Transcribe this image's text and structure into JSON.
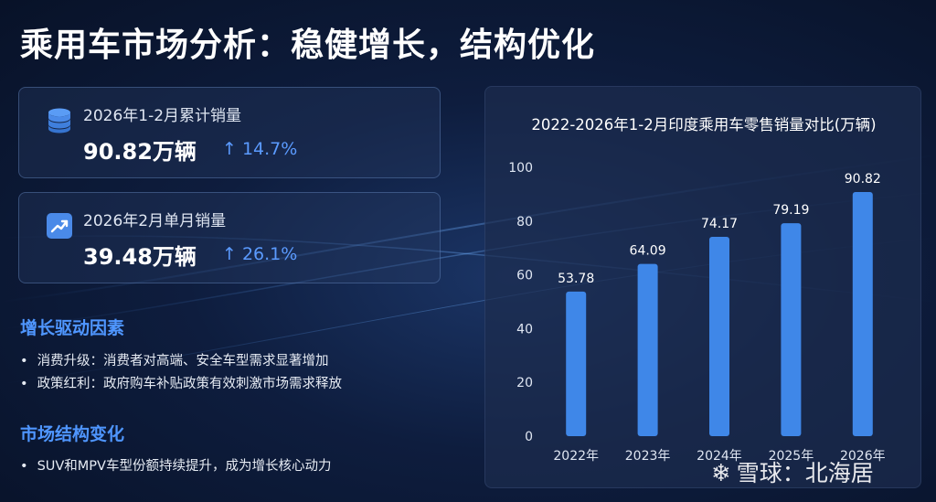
{
  "page": {
    "title": "乘用车市场分析：稳健增长，结构优化"
  },
  "cards": [
    {
      "label": "2026年1-2月累计销量",
      "value": "90.82万辆",
      "growth": "↑ 14.7%",
      "icon": "database-stack-icon"
    },
    {
      "label": "2026年2月单月销量",
      "value": "39.48万辆",
      "growth": "↑ 26.1%",
      "icon": "trend-up-icon"
    }
  ],
  "drivers": {
    "title": "增长驱动因素",
    "items": [
      "消费升级：消费者对高端、安全车型需求显著增加",
      "政策红利：政府购车补贴政策有效刺激市场需求释放"
    ]
  },
  "structure": {
    "title": "市场结构变化",
    "items": [
      "SUV和MPV车型份额持续提升，成为增长核心动力"
    ]
  },
  "colors": {
    "accent": "#4f96ff",
    "bar": "#3f87e8",
    "panel": "#1c2c4e"
  },
  "chart_data": {
    "type": "bar",
    "title": "2022-2026年1-2月印度乘用车零售销量对比(万辆)",
    "categories": [
      "2022年",
      "2023年",
      "2024年",
      "2025年",
      "2026年"
    ],
    "values": [
      53.78,
      64.09,
      74.17,
      79.19,
      90.82
    ],
    "data_labels": [
      "53.78",
      "64.09",
      "74.17",
      "79.19",
      "90.82"
    ],
    "yticks": [
      "0",
      "20",
      "40",
      "60",
      "80",
      "100"
    ],
    "ylim": [
      0,
      100
    ],
    "xlabel": "",
    "ylabel": "",
    "grid": false,
    "legend": "none"
  },
  "watermark": {
    "logo": "❄",
    "text": "雪球：北海居"
  }
}
